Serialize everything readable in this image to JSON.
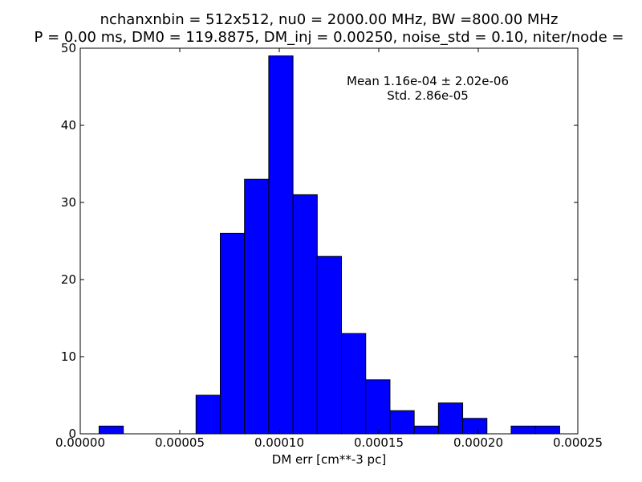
{
  "chart_data": {
    "type": "bar",
    "title_lines": [
      "nchanxnbin = 512x512, nu0 = 2000.00 MHz, BW =800.00 MHz",
      "P = 0.00 ms, DM0 = 119.8875, DM_inj = 0.00250, noise_std = 0.10, niter/node ="
    ],
    "xlabel": "DM err [cm**-3 pc]",
    "ylabel": "",
    "xlim": [
      0.0,
      0.00025
    ],
    "ylim": [
      0,
      50
    ],
    "x_ticks": [
      "0.00000",
      "0.00005",
      "0.00010",
      "0.00015",
      "0.00020",
      "0.00025"
    ],
    "y_ticks": [
      "0",
      "10",
      "20",
      "30",
      "40",
      "50"
    ],
    "bar_color": "#0000ff",
    "bin_width": 1.218e-05,
    "bin_edges": [
      9.46e-06,
      2.164e-05,
      3.382e-05,
      4.6e-05,
      5.818e-05,
      7.036e-05,
      8.254e-05,
      9.472e-05,
      0.0001069,
      0.00011908,
      0.00013126,
      0.00014344,
      0.00015562,
      0.0001678,
      0.00017998,
      0.00019216,
      0.00020434,
      0.00021652,
      0.0002287,
      0.00024088
    ],
    "values": [
      1,
      0,
      0,
      0,
      5,
      26,
      33,
      49,
      31,
      23,
      13,
      7,
      3,
      1,
      4,
      2,
      0,
      1,
      1
    ],
    "annotation": [
      "Mean 1.16e-04 ± 2.02e-06",
      "Std. 2.86e-05"
    ]
  }
}
